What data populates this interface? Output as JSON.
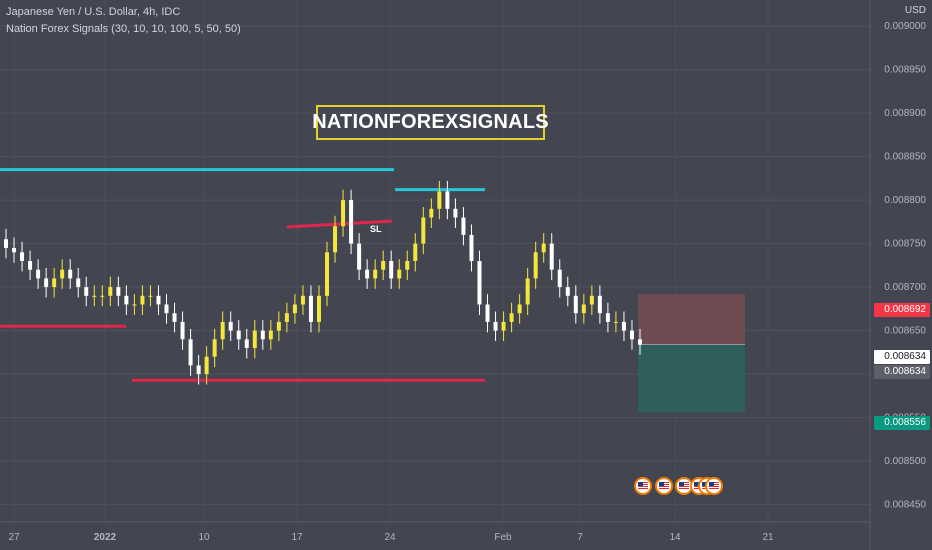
{
  "header": {
    "symbol_line": "Japanese Yen / U.S. Dollar, 4h, IDC",
    "indicator_line": "Nation Forex Signals  (30, 10, 10, 100, 5, 50, 50)"
  },
  "watermark_box": "NATIONFOREXSIGNALS",
  "stop_loss_label": "SL",
  "price_axis": {
    "currency": "USD",
    "ticks": [
      "0.009000",
      "0.008950",
      "0.008900",
      "0.008850",
      "0.008800",
      "0.008750",
      "0.008700",
      "0.008650",
      "0.008600",
      "0.008550",
      "0.008500",
      "0.008450"
    ]
  },
  "price_tags": {
    "red": "0.008692",
    "white": "0.008634",
    "gray": "0.008634",
    "teal": "0.008556"
  },
  "time_axis": {
    "labels": [
      "27",
      "2022",
      "10",
      "17",
      "24",
      "Feb",
      "7",
      "14",
      "21"
    ]
  },
  "colors": {
    "background": "#434651",
    "bull_candle": "#f5e63c",
    "bear_candle": "#ffffff",
    "cyan_line": "#29c5d8",
    "red_line": "#e0264b",
    "box_border": "#e3d12b",
    "stop_zone": "#6e4a51",
    "target_zone": "#2f5f5d"
  },
  "chart_data": {
    "type": "candlestick",
    "ylim": [
      0.00843,
      0.00903
    ],
    "series_close": [
      0.008745,
      0.00874,
      0.00873,
      0.00872,
      0.00871,
      0.0087,
      0.00871,
      0.00872,
      0.00871,
      0.0087,
      0.00869,
      0.00869,
      0.00869,
      0.0087,
      0.00869,
      0.00868,
      0.00868,
      0.00869,
      0.00869,
      0.00868,
      0.00867,
      0.00866,
      0.00864,
      0.00861,
      0.0086,
      0.00862,
      0.00864,
      0.00866,
      0.00865,
      0.00864,
      0.00863,
      0.00865,
      0.00864,
      0.00865,
      0.00866,
      0.00867,
      0.00868,
      0.00869,
      0.00866,
      0.00869,
      0.00874,
      0.00877,
      0.0088,
      0.00875,
      0.00872,
      0.00871,
      0.00872,
      0.00873,
      0.00871,
      0.00872,
      0.00873,
      0.00875,
      0.00878,
      0.00879,
      0.00881,
      0.00879,
      0.00878,
      0.00876,
      0.00873,
      0.00868,
      0.00866,
      0.00865,
      0.00866,
      0.00867,
      0.00868,
      0.00871,
      0.00874,
      0.00875,
      0.00872,
      0.0087,
      0.00869,
      0.00867,
      0.00868,
      0.00869,
      0.00867,
      0.00866,
      0.00866,
      0.00865,
      0.00864,
      0.008634
    ],
    "lines": [
      {
        "name": "cyan-upper",
        "price": 0.008835
      },
      {
        "name": "cyan-short",
        "price": 0.008812
      },
      {
        "name": "red-left",
        "price": 0.008655
      },
      {
        "name": "red-lower",
        "price": 0.008593
      }
    ],
    "position": {
      "entry": 0.008634,
      "stop": 0.008692,
      "target": 0.008556
    }
  }
}
